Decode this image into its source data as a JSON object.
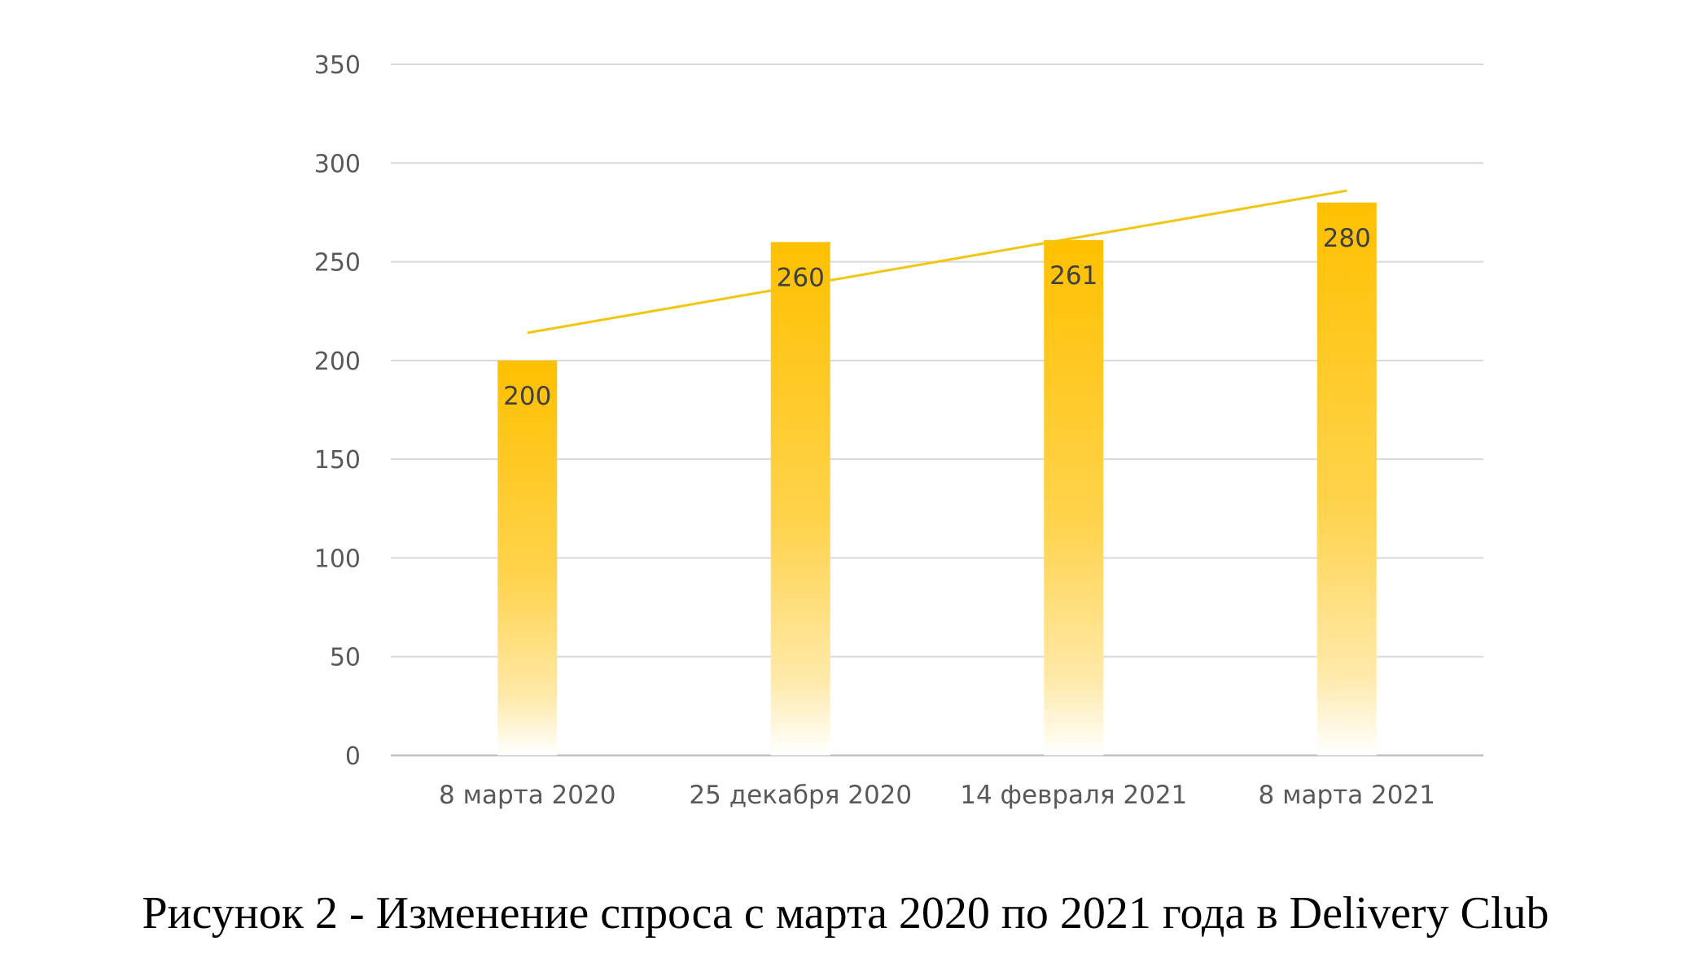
{
  "chart_data": {
    "type": "bar",
    "categories": [
      "8 марта 2020",
      "25 декабря 2020",
      "14 февраля 2021",
      "8 марта 2021"
    ],
    "values": [
      200,
      260,
      261,
      280
    ],
    "data_labels": [
      "200",
      "260",
      "261",
      "280"
    ],
    "ylim": [
      0,
      350
    ],
    "yticks": [
      0,
      50,
      100,
      150,
      200,
      250,
      300,
      350
    ],
    "ytick_labels": [
      "0",
      "50",
      "100",
      "150",
      "200",
      "250",
      "300",
      "350"
    ],
    "grid": true,
    "legend": "none",
    "trendline": {
      "type": "linear",
      "start_value": 214,
      "end_value": 286
    },
    "colors": {
      "bar_top": "#ffc000",
      "bar_bottom": "#ffffff",
      "trendline": "#f2c511",
      "grid": "#d9d9d9",
      "axis": "#bfbfbf"
    }
  },
  "caption": "Рисунок 2 - Изменение спроса с марта 2020 по 2021 года в Delivery Club"
}
